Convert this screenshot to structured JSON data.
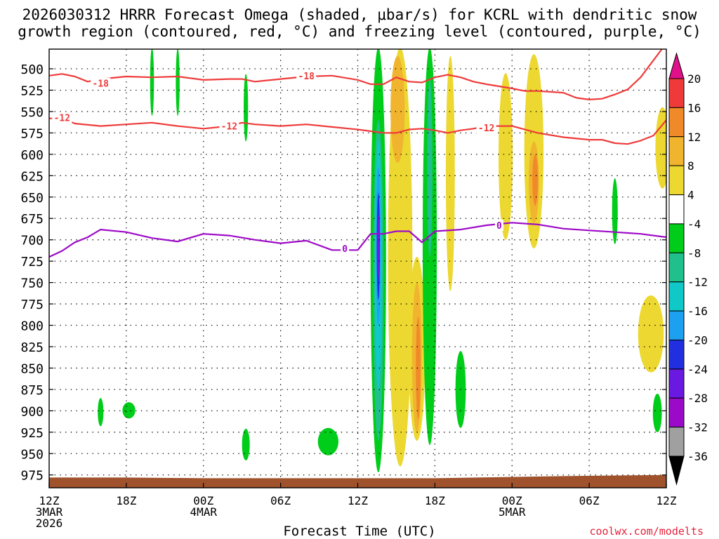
{
  "chart_data": {
    "type": "heatmap",
    "title_line1": "2026030312 HRRR Forecast Omega (shaded, μbar/s) for KCRL with dendritic snow",
    "title_line2": "growth region (contoured, red, °C) and freezing level (contoured, purple, °C)",
    "xlabel": "Forecast Time (UTC)",
    "credit": "coolwx.com/modelts",
    "x_unit": "hours since 2026030312",
    "x_range": [
      0,
      48
    ],
    "x_ticks": [
      {
        "hour": 0,
        "lines": [
          "12Z",
          "3MAR",
          "2026"
        ]
      },
      {
        "hour": 6,
        "lines": [
          "18Z"
        ]
      },
      {
        "hour": 12,
        "lines": [
          "00Z",
          "4MAR"
        ]
      },
      {
        "hour": 18,
        "lines": [
          "06Z"
        ]
      },
      {
        "hour": 24,
        "lines": [
          "12Z"
        ]
      },
      {
        "hour": 30,
        "lines": [
          "18Z"
        ]
      },
      {
        "hour": 36,
        "lines": [
          "00Z",
          "5MAR"
        ]
      },
      {
        "hour": 42,
        "lines": [
          "06Z"
        ]
      },
      {
        "hour": 48,
        "lines": [
          "12Z"
        ]
      }
    ],
    "y_unit": "hPa",
    "y_range": [
      477,
      990
    ],
    "y_ticks": [
      "500",
      "525",
      "550",
      "575",
      "600",
      "625",
      "650",
      "675",
      "700",
      "725",
      "750",
      "775",
      "800",
      "825",
      "850",
      "875",
      "900",
      "925",
      "950",
      "975"
    ],
    "colorbar": {
      "labels": [
        "20",
        "16",
        "12",
        "8",
        "4",
        "-4",
        "-8",
        "-12",
        "-16",
        "-20",
        "-24",
        "-28",
        "-32",
        "-36"
      ],
      "colors": [
        "#f03a3a",
        "#f08a28",
        "#f0b42e",
        "#ecd830",
        "#ffffff",
        "#00cc1a",
        "#20c08c",
        "#10c8c8",
        "#1ea0f0",
        "#2030e0",
        "#6a1ae0",
        "#9a0ac8",
        "#a0a0a0"
      ],
      "top_arrow_color": "#e0108a",
      "bottom_arrow_color": "#000000"
    },
    "contours": [
      {
        "label": "-18",
        "color": "#ef3b3b",
        "points": [
          [
            0,
            508
          ],
          [
            1,
            506
          ],
          [
            2,
            509
          ],
          [
            3,
            515
          ],
          [
            4,
            512
          ],
          [
            6,
            509
          ],
          [
            8,
            510
          ],
          [
            10,
            509
          ],
          [
            12,
            513
          ],
          [
            14,
            512
          ],
          [
            15,
            512
          ],
          [
            16,
            515
          ],
          [
            18,
            512
          ],
          [
            20,
            509
          ],
          [
            22,
            508
          ],
          [
            24,
            513
          ],
          [
            25,
            518
          ],
          [
            26,
            518
          ],
          [
            27,
            510
          ],
          [
            28,
            515
          ],
          [
            29,
            516
          ],
          [
            30,
            510
          ],
          [
            31,
            507
          ],
          [
            32,
            510
          ],
          [
            33,
            515
          ],
          [
            34,
            518
          ],
          [
            36,
            523
          ],
          [
            37,
            526
          ],
          [
            38,
            526
          ],
          [
            40,
            528
          ],
          [
            41,
            534
          ],
          [
            42,
            536
          ],
          [
            43,
            535
          ],
          [
            44,
            530
          ],
          [
            45,
            524
          ],
          [
            46,
            510
          ],
          [
            47,
            490
          ],
          [
            48,
            470
          ]
        ],
        "label_at": [
          [
            4,
            517
          ],
          [
            20,
            508
          ]
        ]
      },
      {
        "label": "-12",
        "color": "#ef3b3b",
        "points": [
          [
            0,
            558
          ],
          [
            1,
            558
          ],
          [
            2,
            564
          ],
          [
            4,
            567
          ],
          [
            6,
            565
          ],
          [
            8,
            563
          ],
          [
            10,
            567
          ],
          [
            12,
            570
          ],
          [
            14,
            567
          ],
          [
            15,
            563
          ],
          [
            16,
            565
          ],
          [
            18,
            567
          ],
          [
            20,
            565
          ],
          [
            22,
            568
          ],
          [
            24,
            571
          ],
          [
            26,
            575
          ],
          [
            27,
            575
          ],
          [
            28,
            571
          ],
          [
            29,
            570
          ],
          [
            30,
            572
          ],
          [
            31,
            575
          ],
          [
            32,
            572
          ],
          [
            33,
            570
          ],
          [
            34,
            567
          ],
          [
            36,
            567
          ],
          [
            38,
            575
          ],
          [
            40,
            580
          ],
          [
            42,
            583
          ],
          [
            43,
            583
          ],
          [
            44,
            587
          ],
          [
            45,
            588
          ],
          [
            46,
            584
          ],
          [
            47,
            578
          ],
          [
            48,
            560
          ]
        ],
        "label_at": [
          [
            1,
            557
          ],
          [
            14,
            567
          ],
          [
            34,
            569
          ]
        ]
      },
      {
        "label": "0",
        "color": "#9e0ac8",
        "points": [
          [
            0,
            720
          ],
          [
            1,
            713
          ],
          [
            2,
            703
          ],
          [
            3,
            697
          ],
          [
            4,
            688
          ],
          [
            6,
            691
          ],
          [
            8,
            698
          ],
          [
            10,
            702
          ],
          [
            12,
            693
          ],
          [
            14,
            695
          ],
          [
            16,
            700
          ],
          [
            18,
            704
          ],
          [
            20,
            701
          ],
          [
            22,
            712
          ],
          [
            24,
            712
          ],
          [
            25,
            693
          ],
          [
            26,
            693
          ],
          [
            27,
            690
          ],
          [
            28,
            690
          ],
          [
            29,
            703
          ],
          [
            30,
            690
          ],
          [
            32,
            688
          ],
          [
            34,
            683
          ],
          [
            36,
            680
          ],
          [
            38,
            682
          ],
          [
            40,
            687
          ],
          [
            42,
            689
          ],
          [
            44,
            691
          ],
          [
            46,
            693
          ],
          [
            48,
            697
          ]
        ],
        "label_at": [
          [
            23,
            710
          ],
          [
            35,
            683
          ]
        ]
      }
    ],
    "shaded_regions": [
      {
        "hour": 8,
        "p_top": 475,
        "p_bot": 555,
        "half_width_h": 0.15,
        "omega": -8
      },
      {
        "hour": 10,
        "p_top": 476,
        "p_bot": 555,
        "half_width_h": 0.15,
        "omega": -8
      },
      {
        "hour": 15.3,
        "p_top": 506,
        "p_bot": 585,
        "half_width_h": 0.17,
        "omega": -8
      },
      {
        "hour": 4.0,
        "p_top": 885,
        "p_bot": 918,
        "half_width_h": 0.22,
        "omega": -8
      },
      {
        "hour": 6.2,
        "p_top": 890,
        "p_bot": 909,
        "half_width_h": 0.5,
        "omega": -8
      },
      {
        "hour": 15.3,
        "p_top": 921,
        "p_bot": 958,
        "half_width_h": 0.3,
        "omega": -8
      },
      {
        "hour": 21.7,
        "p_top": 920,
        "p_bot": 952,
        "half_width_h": 0.8,
        "omega": -8
      },
      {
        "hour": 25.6,
        "p_top": 475,
        "p_bot": 972,
        "half_width_h": 0.6,
        "omega": -8
      },
      {
        "hour": 25.6,
        "p_top": 560,
        "p_bot": 935,
        "half_width_h": 0.4,
        "omega": -12
      },
      {
        "hour": 25.6,
        "p_top": 585,
        "p_bot": 875,
        "half_width_h": 0.28,
        "omega": -16
      },
      {
        "hour": 25.6,
        "p_top": 615,
        "p_bot": 800,
        "half_width_h": 0.18,
        "omega": -20
      },
      {
        "hour": 25.6,
        "p_top": 645,
        "p_bot": 770,
        "half_width_h": 0.12,
        "omega": -24
      },
      {
        "hour": 25.6,
        "p_top": 670,
        "p_bot": 745,
        "half_width_h": 0.07,
        "omega": -28
      },
      {
        "hour": 29.6,
        "p_top": 475,
        "p_bot": 940,
        "half_width_h": 0.55,
        "omega": -8
      },
      {
        "hour": 29.6,
        "p_top": 510,
        "p_bot": 720,
        "half_width_h": 0.2,
        "omega": -12
      },
      {
        "hour": 32.0,
        "p_top": 830,
        "p_bot": 920,
        "half_width_h": 0.4,
        "omega": -8
      },
      {
        "hour": 44.0,
        "p_top": 628,
        "p_bot": 705,
        "half_width_h": 0.22,
        "omega": -8
      },
      {
        "hour": 47.3,
        "p_top": 880,
        "p_bot": 925,
        "half_width_h": 0.35,
        "omega": -8
      },
      {
        "hour": 27.3,
        "p_top": 475,
        "p_bot": 965,
        "half_width_h": 0.95,
        "omega": 4
      },
      {
        "hour": 27.1,
        "p_top": 485,
        "p_bot": 610,
        "half_width_h": 0.55,
        "omega": 8
      },
      {
        "hour": 28.6,
        "p_top": 720,
        "p_bot": 935,
        "half_width_h": 0.65,
        "omega": 4
      },
      {
        "hour": 28.6,
        "p_top": 750,
        "p_bot": 925,
        "half_width_h": 0.38,
        "omega": 8
      },
      {
        "hour": 28.7,
        "p_top": 790,
        "p_bot": 910,
        "half_width_h": 0.18,
        "omega": 12
      },
      {
        "hour": 31.2,
        "p_top": 485,
        "p_bot": 760,
        "half_width_h": 0.35,
        "omega": 4
      },
      {
        "hour": 35.5,
        "p_top": 505,
        "p_bot": 700,
        "half_width_h": 0.55,
        "omega": 4
      },
      {
        "hour": 37.7,
        "p_top": 483,
        "p_bot": 710,
        "half_width_h": 0.75,
        "omega": 4
      },
      {
        "hour": 37.7,
        "p_top": 585,
        "p_bot": 680,
        "half_width_h": 0.4,
        "omega": 8
      },
      {
        "hour": 37.8,
        "p_top": 600,
        "p_bot": 660,
        "half_width_h": 0.22,
        "omega": 12
      },
      {
        "hour": 47.7,
        "p_top": 545,
        "p_bot": 640,
        "half_width_h": 0.55,
        "omega": 4
      },
      {
        "hour": 46.8,
        "p_top": 765,
        "p_bot": 855,
        "half_width_h": 1.0,
        "omega": 4
      }
    ],
    "terrain": {
      "color": "#a0522d",
      "hpa_start": 978,
      "hpa_end": 975
    }
  }
}
